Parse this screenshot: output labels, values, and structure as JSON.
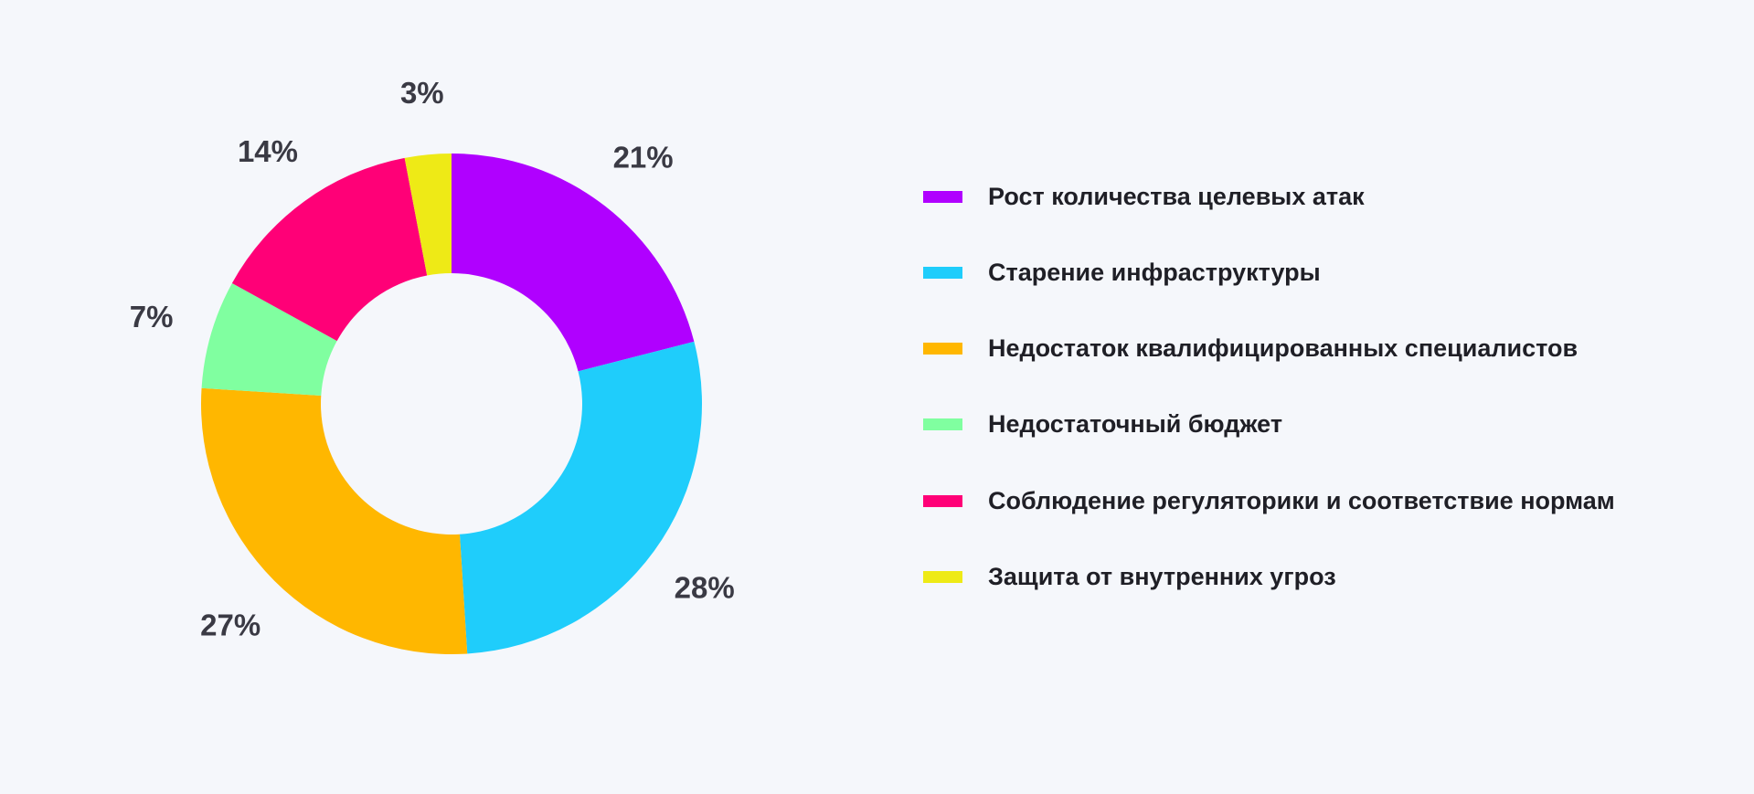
{
  "chart_data": {
    "type": "pie",
    "donut": true,
    "title": "",
    "start_angle_deg": 0,
    "direction": "clockwise",
    "legend_position": "right",
    "slices": [
      {
        "label": "Рост количества целевых атак",
        "value": 21,
        "display": "21%",
        "color": "#b000ff"
      },
      {
        "label": "Старение инфраструктуры",
        "value": 28,
        "display": "28%",
        "color": "#1fcdfb"
      },
      {
        "label": "Недостаток квалифицированных специалистов",
        "value": 27,
        "display": "27%",
        "color": "#ffb700"
      },
      {
        "label": "Недостаточный бюджет",
        "value": 7,
        "display": "7%",
        "color": "#80ffa0"
      },
      {
        "label": "Соблюдение регуляторики и соответствие нормам",
        "value": 14,
        "display": "14%",
        "color": "#ff0077"
      },
      {
        "label": "Защита от внутренних угроз",
        "value": 3,
        "display": "3%",
        "color": "#eeea16"
      }
    ]
  }
}
